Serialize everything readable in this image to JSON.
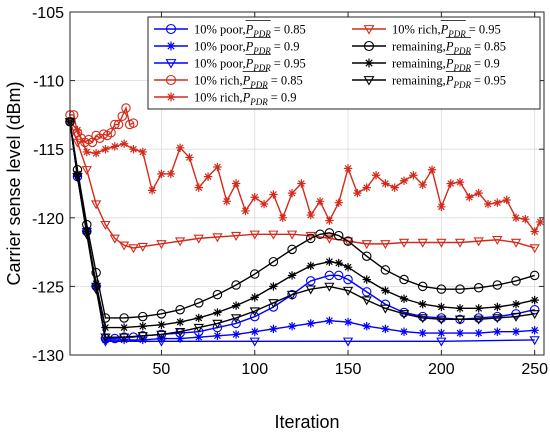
{
  "chart_data": {
    "type": "line",
    "xlabel": "Iteration",
    "ylabel": "Carrier sense level (dBm)",
    "xlim": [
      1,
      255
    ],
    "ylim": [
      -130,
      -105
    ],
    "xticks": [
      50,
      100,
      150,
      200,
      250
    ],
    "yticks": [
      -130,
      -125,
      -120,
      -115,
      -110,
      -105
    ],
    "grid": true,
    "legend_position": "top-right",
    "series": [
      {
        "name": "10% poor, P_PDR = 0.85",
        "label": "10% poor, ",
        "pbar": "0.85",
        "color": "#0000ff",
        "marker": "circle",
        "x": [
          1,
          5,
          10,
          15,
          20,
          25,
          30,
          35,
          40,
          50,
          60,
          70,
          80,
          90,
          100,
          110,
          120,
          130,
          140,
          145,
          150,
          160,
          170,
          180,
          190,
          200,
          210,
          220,
          230,
          240,
          250
        ],
        "y": [
          -113,
          -117,
          -121,
          -125,
          -128.8,
          -128.8,
          -128.7,
          -128.7,
          -128.6,
          -128.5,
          -128.4,
          -128.3,
          -128,
          -127.7,
          -127.2,
          -126.5,
          -125.6,
          -124.6,
          -124.2,
          -124.2,
          -124.5,
          -125.4,
          -126.3,
          -126.9,
          -127.2,
          -127.3,
          -127.4,
          -127.3,
          -127.2,
          -127,
          -126.7
        ]
      },
      {
        "name": "10% poor, P_PDR = 0.9",
        "label": "10% poor, ",
        "pbar": "0.9",
        "color": "#0000ff",
        "marker": "star",
        "x": [
          1,
          5,
          10,
          15,
          20,
          30,
          40,
          50,
          60,
          70,
          80,
          90,
          100,
          110,
          120,
          130,
          140,
          150,
          160,
          170,
          180,
          190,
          200,
          210,
          220,
          230,
          240,
          250
        ],
        "y": [
          -113,
          -117,
          -121,
          -125,
          -128.9,
          -128.9,
          -128.9,
          -128.8,
          -128.8,
          -128.7,
          -128.6,
          -128.5,
          -128.3,
          -128.1,
          -127.9,
          -127.7,
          -127.5,
          -127.6,
          -127.9,
          -128.1,
          -128.3,
          -128.4,
          -128.4,
          -128.4,
          -128.4,
          -128.3,
          -128.3,
          -128.2
        ]
      },
      {
        "name": "10% poor, P_PDR = 0.95",
        "label": "10% poor, ",
        "pbar": "0.95",
        "color": "#0000ff",
        "marker": "triangle-down",
        "x": [
          1,
          5,
          10,
          15,
          20,
          50,
          100,
          150,
          200,
          250
        ],
        "y": [
          -113,
          -117,
          -121,
          -125,
          -129,
          -129,
          -129,
          -129,
          -129,
          -128.9
        ]
      },
      {
        "name": "10% rich, P_PDR = 0.85",
        "label": "10% rich, ",
        "pbar": "0.85",
        "color": "#d42a1a",
        "marker": "circle",
        "x": [
          1,
          3,
          5,
          7,
          9,
          11,
          13,
          15,
          17,
          19,
          21,
          23,
          25,
          27,
          29,
          31,
          33,
          35
        ],
        "y": [
          -112.5,
          -112.5,
          -113.8,
          -114.2,
          -114.5,
          -114.3,
          -114.5,
          -114.0,
          -114.2,
          -113.9,
          -114.0,
          -113.8,
          -113.2,
          -113.2,
          -112.6,
          -112.0,
          -113.2,
          -113.1
        ]
      },
      {
        "name": "10% rich, P_PDR = 0.9",
        "label": "10% rich, ",
        "pbar": "0.9",
        "color": "#d42a1a",
        "marker": "star",
        "x": [
          1,
          5,
          10,
          15,
          20,
          25,
          30,
          35,
          40,
          45,
          50,
          55,
          60,
          65,
          70,
          75,
          80,
          85,
          90,
          95,
          100,
          105,
          110,
          115,
          120,
          125,
          130,
          135,
          140,
          145,
          150,
          155,
          160,
          165,
          170,
          175,
          180,
          185,
          190,
          195,
          200,
          205,
          210,
          215,
          220,
          225,
          230,
          235,
          240,
          245,
          250,
          253
        ],
        "y": [
          -113,
          -113.6,
          -115.2,
          -115.3,
          -115.0,
          -114.8,
          -114.6,
          -115.0,
          -115.2,
          -118.0,
          -116.8,
          -116.8,
          -114.9,
          -115.6,
          -117.8,
          -117.0,
          -116.3,
          -118.8,
          -117.5,
          -119.5,
          -118.5,
          -119.0,
          -118.3,
          -120.0,
          -118.2,
          -117.5,
          -119.8,
          -118.8,
          -120.2,
          -118.9,
          -116.4,
          -118.2,
          -117.8,
          -116.9,
          -117.5,
          -117.8,
          -117.3,
          -116.9,
          -117.6,
          -116.5,
          -119.2,
          -117.5,
          -117.4,
          -118.5,
          -118.2,
          -119.0,
          -118.9,
          -118.7,
          -120.0,
          -120.1,
          -121.0,
          -120.3
        ]
      },
      {
        "name": "10% rich, P_PDR = 0.95",
        "label": "10% rich, ",
        "pbar": "0.95",
        "color": "#d42a1a",
        "marker": "triangle-down",
        "x": [
          1,
          5,
          10,
          15,
          20,
          25,
          30,
          35,
          40,
          50,
          60,
          70,
          80,
          90,
          100,
          110,
          120,
          130,
          140,
          150,
          160,
          170,
          180,
          190,
          200,
          210,
          220,
          230,
          240,
          250
        ],
        "y": [
          -113,
          -114.5,
          -116.5,
          -119,
          -120.5,
          -121.5,
          -122.0,
          -122.2,
          -122.1,
          -121.9,
          -121.7,
          -121.5,
          -121.4,
          -121.3,
          -121.2,
          -121.2,
          -121.2,
          -121.3,
          -121.5,
          -121.7,
          -121.9,
          -121.9,
          -121.8,
          -121.8,
          -121.8,
          -121.8,
          -121.7,
          -121.6,
          -121.8,
          -122.2
        ]
      },
      {
        "name": "remaining, P_PDR = 0.85",
        "label": "remaining, ",
        "pbar": "0.85",
        "color": "#000000",
        "marker": "circle",
        "x": [
          1,
          5,
          10,
          15,
          20,
          30,
          40,
          50,
          60,
          70,
          80,
          90,
          100,
          110,
          120,
          130,
          135,
          140,
          145,
          150,
          160,
          170,
          180,
          190,
          200,
          210,
          220,
          230,
          240,
          250
        ],
        "y": [
          -113,
          -116.5,
          -120.5,
          -124,
          -127.3,
          -127.3,
          -127.2,
          -127.0,
          -126.7,
          -126.2,
          -125.6,
          -124.9,
          -124.1,
          -123.2,
          -122.3,
          -121.5,
          -121.2,
          -121.1,
          -121.3,
          -121.7,
          -122.8,
          -123.8,
          -124.5,
          -125.0,
          -125.2,
          -125.2,
          -125.1,
          -124.9,
          -124.6,
          -124.2
        ]
      },
      {
        "name": "remaining, P_PDR = 0.9",
        "label": "remaining, ",
        "pbar": "0.9",
        "color": "#000000",
        "marker": "star",
        "x": [
          1,
          5,
          10,
          15,
          20,
          30,
          40,
          50,
          60,
          70,
          80,
          90,
          100,
          110,
          120,
          130,
          140,
          145,
          150,
          160,
          170,
          180,
          190,
          200,
          210,
          220,
          230,
          240,
          250
        ],
        "y": [
          -113,
          -116.8,
          -121,
          -124.8,
          -128.0,
          -128.0,
          -127.9,
          -127.8,
          -127.6,
          -127.3,
          -126.9,
          -126.4,
          -125.8,
          -125.0,
          -124.2,
          -123.5,
          -123.2,
          -123.3,
          -123.6,
          -124.5,
          -125.3,
          -125.9,
          -126.3,
          -126.5,
          -126.6,
          -126.6,
          -126.5,
          -126.3,
          -126.0
        ]
      },
      {
        "name": "remaining, P_PDR = 0.95",
        "label": "remaining, ",
        "pbar": "0.95",
        "color": "#000000",
        "marker": "triangle-down",
        "x": [
          1,
          5,
          10,
          15,
          20,
          30,
          40,
          50,
          60,
          70,
          80,
          90,
          100,
          110,
          120,
          130,
          140,
          150,
          160,
          170,
          180,
          190,
          200,
          210,
          220,
          230,
          240,
          250
        ],
        "y": [
          -113,
          -117,
          -121.2,
          -125.2,
          -128.7,
          -128.7,
          -128.6,
          -128.5,
          -128.3,
          -128.0,
          -127.7,
          -127.3,
          -126.8,
          -126.2,
          -125.6,
          -125.2,
          -125.0,
          -125.3,
          -126.0,
          -126.6,
          -127.0,
          -127.3,
          -127.4,
          -127.4,
          -127.4,
          -127.3,
          -127.2,
          -127.0
        ]
      }
    ]
  }
}
